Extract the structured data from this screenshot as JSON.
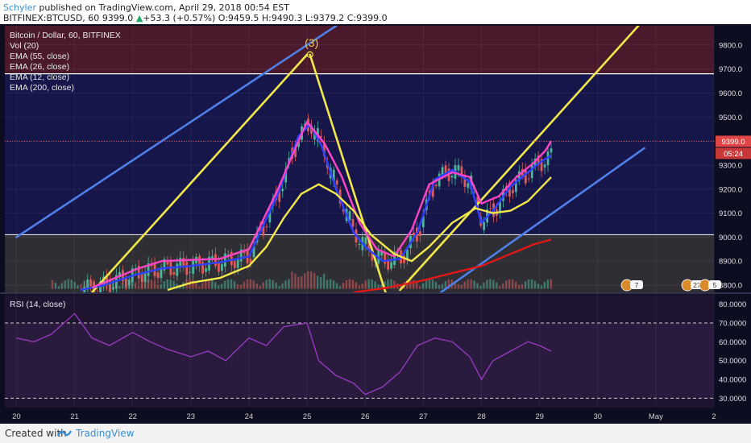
{
  "header": {
    "author": "Schyler",
    "published_text": " published on TradingView.com, April 29, 2018 00:54 EST",
    "symbol": "BITFINEX:BTCUSD, 60",
    "last": "9399.0",
    "change_arrow": "▲",
    "change": "+53.3 (+0.57%)",
    "ohlc_o": "O:9459.5",
    "ohlc_h": "H:9490.3",
    "ohlc_l": "L:9379.2",
    "ohlc_c": "C:9399.0"
  },
  "legend": {
    "title": "Bitcoin / Dollar, 60, BITFINEX",
    "vol": "Vol (20)",
    "ema55": "EMA (55, close)",
    "ema26": "EMA (26, close)",
    "ema12": "EMA (12, close)",
    "ema200": "EMA (200, close)"
  },
  "rsi_label": "RSI (14, close)",
  "wave_label": "(3)",
  "price_tag": "9399.0",
  "time_tag": "05:24",
  "badges": [
    "7",
    "27",
    "5"
  ],
  "footer": {
    "created": "Created with",
    "brand": "TradingView"
  },
  "colors": {
    "bg_main": "#16164a",
    "zone_red": "#4a1a2c",
    "zone_gray": "#2e2e34",
    "ema12": "#3040ff",
    "ema26": "#ff44c8",
    "ema55": "#f2e84a",
    "ema200": "#e01818",
    "trend_blue": "#4f7fe8",
    "trend_yellow": "#f2e84a",
    "rsi": "#9a3cc4",
    "candle_up": "#4fb49a",
    "candle_down": "#e05a5a"
  },
  "chart_data": [
    {
      "type": "line",
      "title": "Bitcoin / Dollar, 60, BITFINEX",
      "y_ticks": [
        "9800.0",
        "9700.0",
        "9600.0",
        "9500.0",
        "9400.0",
        "9300.0",
        "9200.0",
        "9100.0",
        "9000.0",
        "8900.0",
        "8800.0"
      ],
      "x_ticks": [
        "20",
        "21",
        "22",
        "23",
        "24",
        "25",
        "26",
        "27",
        "28",
        "29",
        "30",
        "May",
        "2"
      ],
      "ylim": [
        8770,
        9880
      ],
      "series": [
        {
          "name": "EMA (12, close)",
          "points": [
            [
              21.1,
              8780
            ],
            [
              21.5,
              8800
            ],
            [
              22,
              8840
            ],
            [
              22.5,
              8870
            ],
            [
              23,
              8880
            ],
            [
              23.5,
              8895
            ],
            [
              24,
              8920
            ],
            [
              24.5,
              9180
            ],
            [
              24.85,
              9420
            ],
            [
              25.05,
              9470
            ],
            [
              25.25,
              9380
            ],
            [
              25.5,
              9200
            ],
            [
              25.8,
              9020
            ],
            [
              26.0,
              8960
            ],
            [
              26.3,
              8900
            ],
            [
              26.6,
              8910
            ],
            [
              26.9,
              9020
            ],
            [
              27.2,
              9240
            ],
            [
              27.5,
              9280
            ],
            [
              27.8,
              9230
            ],
            [
              28.0,
              9060
            ],
            [
              28.2,
              9110
            ],
            [
              28.5,
              9210
            ],
            [
              28.8,
              9270
            ],
            [
              29.0,
              9310
            ],
            [
              29.2,
              9340
            ]
          ]
        },
        {
          "name": "EMA (26, close)",
          "points": [
            [
              21.3,
              8790
            ],
            [
              21.7,
              8830
            ],
            [
              22.1,
              8870
            ],
            [
              22.5,
              8900
            ],
            [
              23,
              8905
            ],
            [
              23.5,
              8910
            ],
            [
              24,
              8950
            ],
            [
              24.5,
              9200
            ],
            [
              24.85,
              9400
            ],
            [
              25.0,
              9480
            ],
            [
              25.3,
              9390
            ],
            [
              25.6,
              9250
            ],
            [
              25.9,
              9060
            ],
            [
              26.2,
              8950
            ],
            [
              26.5,
              8920
            ],
            [
              26.8,
              9030
            ],
            [
              27.1,
              9220
            ],
            [
              27.5,
              9270
            ],
            [
              27.8,
              9250
            ],
            [
              28.0,
              9140
            ],
            [
              28.3,
              9170
            ],
            [
              28.6,
              9250
            ],
            [
              28.9,
              9310
            ],
            [
              29.1,
              9360
            ],
            [
              29.2,
              9400
            ]
          ]
        },
        {
          "name": "EMA (55, close)",
          "points": [
            [
              22.6,
              8780
            ],
            [
              23.0,
              8810
            ],
            [
              23.5,
              8830
            ],
            [
              24.0,
              8880
            ],
            [
              24.3,
              8960
            ],
            [
              24.6,
              9080
            ],
            [
              24.9,
              9180
            ],
            [
              25.2,
              9220
            ],
            [
              25.5,
              9180
            ],
            [
              25.8,
              9110
            ],
            [
              26.1,
              9010
            ],
            [
              26.5,
              8930
            ],
            [
              26.8,
              8900
            ],
            [
              27.1,
              8960
            ],
            [
              27.5,
              9060
            ],
            [
              27.9,
              9120
            ],
            [
              28.2,
              9100
            ],
            [
              28.5,
              9110
            ],
            [
              28.8,
              9150
            ],
            [
              29.0,
              9200
            ],
            [
              29.2,
              9250
            ]
          ]
        },
        {
          "name": "EMA (200, close)",
          "points": [
            [
              25.8,
              8770
            ],
            [
              26.4,
              8790
            ],
            [
              27.0,
              8820
            ],
            [
              27.5,
              8850
            ],
            [
              28.0,
              8880
            ],
            [
              28.5,
              8930
            ],
            [
              28.9,
              8970
            ],
            [
              29.2,
              8990
            ]
          ]
        },
        {
          "name": "RSI (14, close)",
          "points": [
            [
              20.0,
              62
            ],
            [
              20.3,
              60
            ],
            [
              20.6,
              64
            ],
            [
              21.0,
              75
            ],
            [
              21.3,
              62
            ],
            [
              21.6,
              58
            ],
            [
              22.0,
              65
            ],
            [
              22.3,
              60
            ],
            [
              22.6,
              56
            ],
            [
              23.0,
              52
            ],
            [
              23.3,
              55
            ],
            [
              23.6,
              50
            ],
            [
              24.0,
              62
            ],
            [
              24.3,
              58
            ],
            [
              24.6,
              68
            ],
            [
              25.0,
              70
            ],
            [
              25.2,
              50
            ],
            [
              25.5,
              42
            ],
            [
              25.8,
              38
            ],
            [
              26.0,
              32
            ],
            [
              26.3,
              36
            ],
            [
              26.6,
              44
            ],
            [
              26.9,
              58
            ],
            [
              27.2,
              62
            ],
            [
              27.5,
              60
            ],
            [
              27.8,
              52
            ],
            [
              28.0,
              40
            ],
            [
              28.2,
              50
            ],
            [
              28.5,
              55
            ],
            [
              28.8,
              60
            ],
            [
              29.0,
              58
            ],
            [
              29.2,
              55
            ]
          ]
        }
      ],
      "trendlines": [
        {
          "name": "blue-upper",
          "points": [
            [
              20.0,
              9000
            ],
            [
              25.5,
              9880
            ]
          ]
        },
        {
          "name": "blue-lower",
          "points": [
            [
              27.3,
              8770
            ],
            [
              30.8,
              9370
            ]
          ]
        },
        {
          "name": "yellow-left",
          "points": [
            [
              21.3,
              8770
            ],
            [
              25.0,
              9760
            ]
          ]
        },
        {
          "name": "yellow-right",
          "points": [
            [
              25.05,
              9760
            ],
            [
              26.35,
              8770
            ]
          ]
        },
        {
          "name": "yellow-rising",
          "points": [
            [
              26.6,
              8780
            ],
            [
              30.7,
              9880
            ]
          ]
        }
      ],
      "zones": [
        {
          "name": "resistance",
          "from": 9680,
          "to": 9880
        },
        {
          "name": "support",
          "from": 8770,
          "to": 9010
        }
      ]
    },
    {
      "type": "line",
      "title": "RSI (14, close)",
      "y_ticks": [
        "80.0000",
        "70.0000",
        "60.0000",
        "50.0000",
        "40.0000",
        "30.0000"
      ],
      "ylim": [
        25,
        85
      ],
      "guides": [
        70,
        30
      ]
    }
  ]
}
